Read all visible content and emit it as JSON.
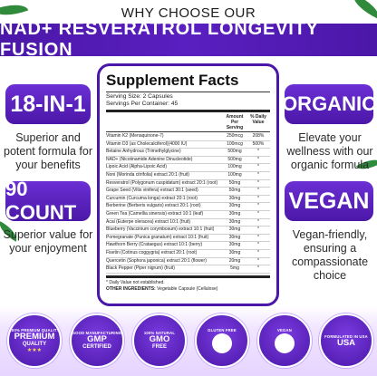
{
  "header": {
    "kicker": "WHY CHOOSE OUR",
    "banner": "NAD+ RESVERATROL LONGEVITY FUSION"
  },
  "left": {
    "pill1": "18-IN-1",
    "text1": "Superior and potent formula for your benefits",
    "pill2": "90 COUNT",
    "text2": "Superior value for your enjoyment"
  },
  "right": {
    "pill1": "ORGANIC",
    "text1": "Elevate your wellness with our organic formula",
    "pill2": "VEGAN",
    "text2": "Vegan-friendly, ensuring a compassionate choice"
  },
  "facts": {
    "title": "Supplement Facts",
    "serving_size": "Serving Size: 2 Capsules",
    "servings_per": "Servings Per Container: 45",
    "col_amount": "Amount Per Serving",
    "col_dv": "% Daily Value",
    "rows": [
      {
        "name": "Vitamin K2 (Menaquinone-7)",
        "amount": "250mcg",
        "dv": "208%"
      },
      {
        "name": "Vitamin D3 (as Cholecalciferol)(4000 IU)",
        "amount": "100mcg",
        "dv": "500%"
      },
      {
        "name": "Betaine Anhydrous (Trimethylglycine)",
        "amount": "500mg",
        "dv": "*"
      },
      {
        "name": "NAD+ (Nicotinamide Adenine Dinucleotide)",
        "amount": "500mg",
        "dv": "*"
      },
      {
        "name": "Lipoic Acid (Alpha-Lipoic Acid)",
        "amount": "100mg",
        "dv": "*"
      },
      {
        "name": "Noni (Morinda citrifolia) extract 20:1 (fruit)",
        "amount": "100mg",
        "dv": "*"
      },
      {
        "name": "Resveratrol (Polygonum cuspidatum) extract 20:1 (root)",
        "amount": "50mg",
        "dv": "*"
      },
      {
        "name": "Grape Seed (Vitis vinifera) extract 30:1 (seed)",
        "amount": "50mg",
        "dv": "*"
      },
      {
        "name": "Curcumin (Curcuma longa) extract 20:1 (root)",
        "amount": "30mg",
        "dv": "*"
      },
      {
        "name": "Berberine (Berberis vulgaris) extract 20:1 (root)",
        "amount": "30mg",
        "dv": "*"
      },
      {
        "name": "Green Tea (Camellia sinensis) extract 10:1 (leaf)",
        "amount": "30mg",
        "dv": "*"
      },
      {
        "name": "Acai (Euterpe oleracea) extract 10:1 (fruit)",
        "amount": "30mg",
        "dv": "*"
      },
      {
        "name": "Blueberry (Vaccinium corymbosum) extract 10:1 (fruit)",
        "amount": "30mg",
        "dv": "*"
      },
      {
        "name": "Pomegranate (Punica granatum) extract 10:1 (fruit)",
        "amount": "30mg",
        "dv": "*"
      },
      {
        "name": "Hawthorn Berry (Crataegus) extract 10:1 (berry)",
        "amount": "30mg",
        "dv": "*"
      },
      {
        "name": "Fisetin (Cotinus coggygria) extract 20:1 (root)",
        "amount": "30mg",
        "dv": "*"
      },
      {
        "name": "Quercetin (Sophora japonica) extract 20:1 (flower)",
        "amount": "20mg",
        "dv": "*"
      },
      {
        "name": "Black Pepper (Piper nigrum) (fruit)",
        "amount": "5mg",
        "dv": "*"
      }
    ],
    "dv_note": "* Daily Value not established.",
    "other_label": "OTHER INGREDIENTS:",
    "other_text": "Vegetable Capsule (Cellulose)"
  },
  "badges": [
    {
      "ring": "100% PREMIUM QUALITY",
      "main": "PREMIUM",
      "sub": "QUALITY",
      "stars": "★★★"
    },
    {
      "ring": "GOOD MANUFACTURING",
      "main": "GMP",
      "sub": "CERTIFIED",
      "stars": ""
    },
    {
      "ring": "100% NATURAL",
      "main": "GMO",
      "sub": "FREE",
      "stars": ""
    },
    {
      "ring": "GLUTEN FREE",
      "main": "",
      "sub": "",
      "stars": ""
    },
    {
      "ring": "VEGAN",
      "main": "",
      "sub": "",
      "stars": ""
    },
    {
      "ring": "FORMULATED IN USA",
      "main": "USA",
      "sub": "",
      "stars": ""
    }
  ],
  "colors": {
    "brand_purple": "#4b17a8",
    "accent_purple": "#6b2fd4",
    "leaf_green": "#2f8a3c"
  }
}
